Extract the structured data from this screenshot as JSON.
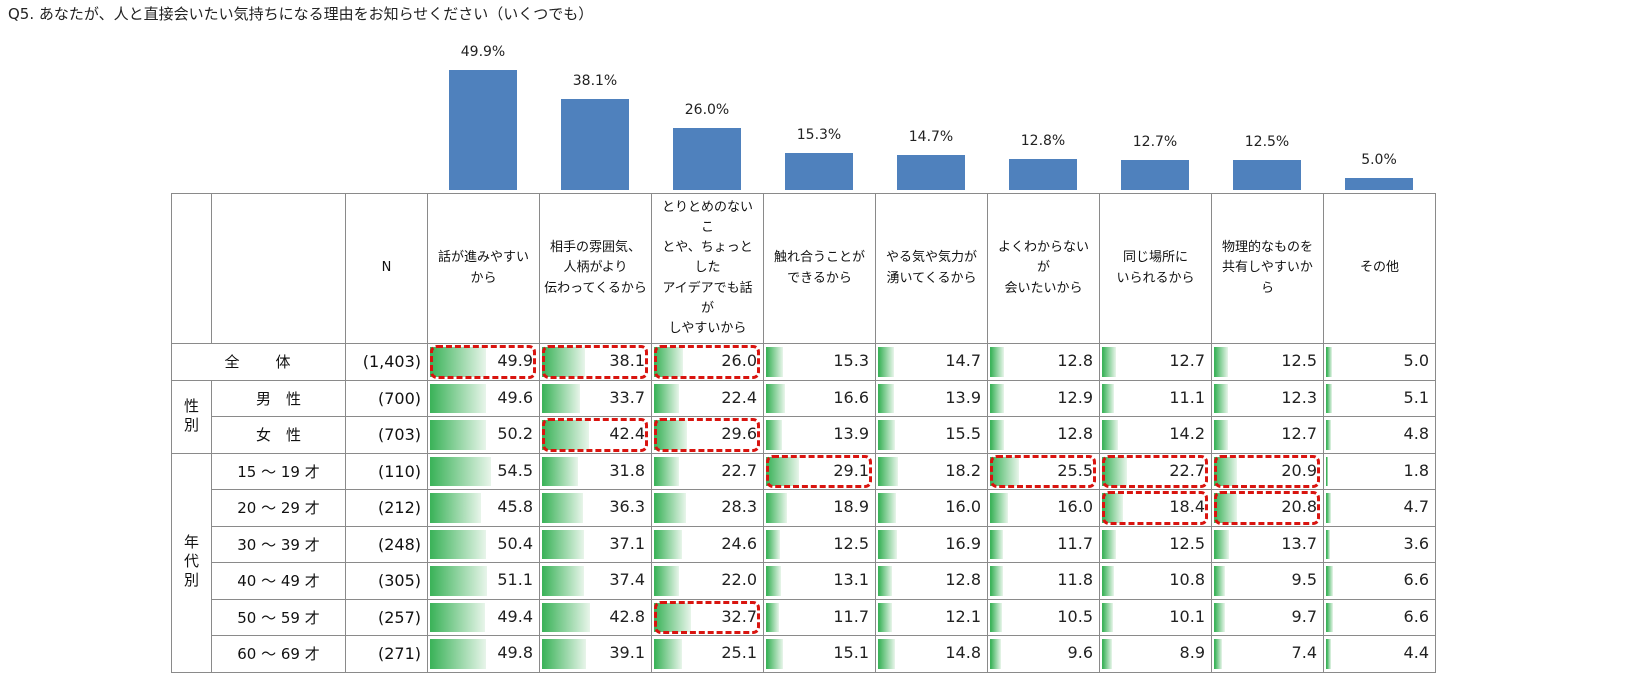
{
  "title": "Q5. あなたが、人と直接会いたい気持ちになる理由をお知らせください（いくつでも）",
  "chart_data": {
    "type": "bar",
    "categories": [
      "話が進みやすい\nから",
      "相手の雰囲気、\n人柄がより\n伝わってくるから",
      "とりとめのないこ\nとや、ちょっとした\nアイデアでも話が\nしやすいから",
      "触れ合うことが\nできるから",
      "やる気や気力が\n湧いてくるから",
      "よくわからないが\n会いたいから",
      "同じ場所に\nいられるから",
      "物理的なものを\n共有しやすいか\nら",
      "その他"
    ],
    "values": [
      49.9,
      38.1,
      26.0,
      15.3,
      14.7,
      12.8,
      12.7,
      12.5,
      5.0
    ],
    "value_labels": [
      "49.9%",
      "38.1%",
      "26.0%",
      "15.3%",
      "14.7%",
      "12.8%",
      "12.7%",
      "12.5%",
      "5.0%"
    ],
    "color": "#4f81bd"
  },
  "table": {
    "n_header": "N",
    "bar_color": "#3cb35a",
    "highlight_color": "#d9140f",
    "total": {
      "label": "全　　体",
      "n": "(1,403)",
      "values": [
        49.9,
        38.1,
        26.0,
        15.3,
        14.7,
        12.8,
        12.7,
        12.5,
        5.0
      ],
      "value_labels": [
        "49.9",
        "38.1",
        "26.0",
        "15.3",
        "14.7",
        "12.8",
        "12.7",
        "12.5",
        "5.0"
      ],
      "highlight": [
        0,
        1,
        2
      ]
    },
    "groups": [
      {
        "label": "性別",
        "rows": [
          {
            "label": "男　性",
            "n": "(700)",
            "values": [
              49.6,
              33.7,
              22.4,
              16.6,
              13.9,
              12.9,
              11.1,
              12.3,
              5.1
            ],
            "value_labels": [
              "49.6",
              "33.7",
              "22.4",
              "16.6",
              "13.9",
              "12.9",
              "11.1",
              "12.3",
              "5.1"
            ],
            "highlight": []
          },
          {
            "label": "女　性",
            "n": "(703)",
            "values": [
              50.2,
              42.4,
              29.6,
              13.9,
              15.5,
              12.8,
              14.2,
              12.7,
              4.8
            ],
            "value_labels": [
              "50.2",
              "42.4",
              "29.6",
              "13.9",
              "15.5",
              "12.8",
              "14.2",
              "12.7",
              "4.8"
            ],
            "highlight": [
              1,
              2
            ]
          }
        ]
      },
      {
        "label": "年代別",
        "rows": [
          {
            "label": "15 ～ 19 才",
            "n": "(110)",
            "values": [
              54.5,
              31.8,
              22.7,
              29.1,
              18.2,
              25.5,
              22.7,
              20.9,
              1.8
            ],
            "value_labels": [
              "54.5",
              "31.8",
              "22.7",
              "29.1",
              "18.2",
              "25.5",
              "22.7",
              "20.9",
              "1.8"
            ],
            "highlight": [
              3,
              5,
              6,
              7
            ]
          },
          {
            "label": "20 ～ 29 才",
            "n": "(212)",
            "values": [
              45.8,
              36.3,
              28.3,
              18.9,
              16.0,
              16.0,
              18.4,
              20.8,
              4.7
            ],
            "value_labels": [
              "45.8",
              "36.3",
              "28.3",
              "18.9",
              "16.0",
              "16.0",
              "18.4",
              "20.8",
              "4.7"
            ],
            "highlight": [
              6,
              7
            ]
          },
          {
            "label": "30 ～ 39 才",
            "n": "(248)",
            "values": [
              50.4,
              37.1,
              24.6,
              12.5,
              16.9,
              11.7,
              12.5,
              13.7,
              3.6
            ],
            "value_labels": [
              "50.4",
              "37.1",
              "24.6",
              "12.5",
              "16.9",
              "11.7",
              "12.5",
              "13.7",
              "3.6"
            ],
            "highlight": []
          },
          {
            "label": "40 ～ 49 才",
            "n": "(305)",
            "values": [
              51.1,
              37.4,
              22.0,
              13.1,
              12.8,
              11.8,
              10.8,
              9.5,
              6.6
            ],
            "value_labels": [
              "51.1",
              "37.4",
              "22.0",
              "13.1",
              "12.8",
              "11.8",
              "10.8",
              "9.5",
              "6.6"
            ],
            "highlight": []
          },
          {
            "label": "50 ～ 59 才",
            "n": "(257)",
            "values": [
              49.4,
              42.8,
              32.7,
              11.7,
              12.1,
              10.5,
              10.1,
              9.7,
              6.6
            ],
            "value_labels": [
              "49.4",
              "42.8",
              "32.7",
              "11.7",
              "12.1",
              "10.5",
              "10.1",
              "9.7",
              "6.6"
            ],
            "highlight": [
              2
            ]
          },
          {
            "label": "60 ～ 69 才",
            "n": "(271)",
            "values": [
              49.8,
              39.1,
              25.1,
              15.1,
              14.8,
              9.6,
              8.9,
              7.4,
              4.4
            ],
            "value_labels": [
              "49.8",
              "39.1",
              "25.1",
              "15.1",
              "14.8",
              "9.6",
              "8.9",
              "7.4",
              "4.4"
            ],
            "highlight": []
          }
        ]
      }
    ]
  }
}
